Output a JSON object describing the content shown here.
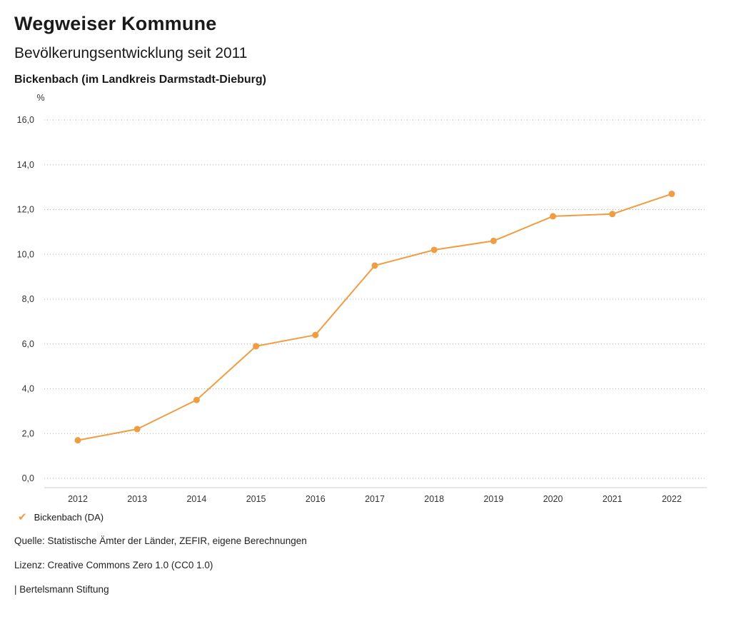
{
  "header": {
    "title": "Wegweiser Kommune",
    "subtitle": "Bevölkerungsentwicklung seit 2011",
    "region": "Bickenbach (im Landkreis Darmstadt-Dieburg)"
  },
  "chart_data": {
    "type": "line",
    "unit_label": "%",
    "x": [
      "2012",
      "2013",
      "2014",
      "2015",
      "2016",
      "2017",
      "2018",
      "2019",
      "2020",
      "2021",
      "2022"
    ],
    "series": [
      {
        "name": "Bickenbach (DA)",
        "color": "#F09C42",
        "values": [
          1.7,
          2.2,
          3.5,
          5.9,
          6.4,
          9.5,
          10.2,
          10.6,
          11.7,
          11.8,
          12.7
        ]
      }
    ],
    "ylim": [
      0,
      16
    ],
    "ytick_step": 2,
    "grid": true,
    "legend_position": "bottom",
    "title": "Bevölkerungsentwicklung seit 2011",
    "xlabel": "",
    "ylabel": "%"
  },
  "legend": {
    "items": [
      {
        "label": "Bickenbach (DA)",
        "color": "#F09C42",
        "checked": true,
        "check_glyph": "✔"
      }
    ]
  },
  "footer": {
    "source": "Quelle: Statistische Ämter der Länder, ZEFIR, eigene Berechnungen",
    "license": "Lizenz: Creative Commons Zero 1.0 (CC0 1.0)",
    "attribution": "| Bertelsmann Stiftung"
  }
}
